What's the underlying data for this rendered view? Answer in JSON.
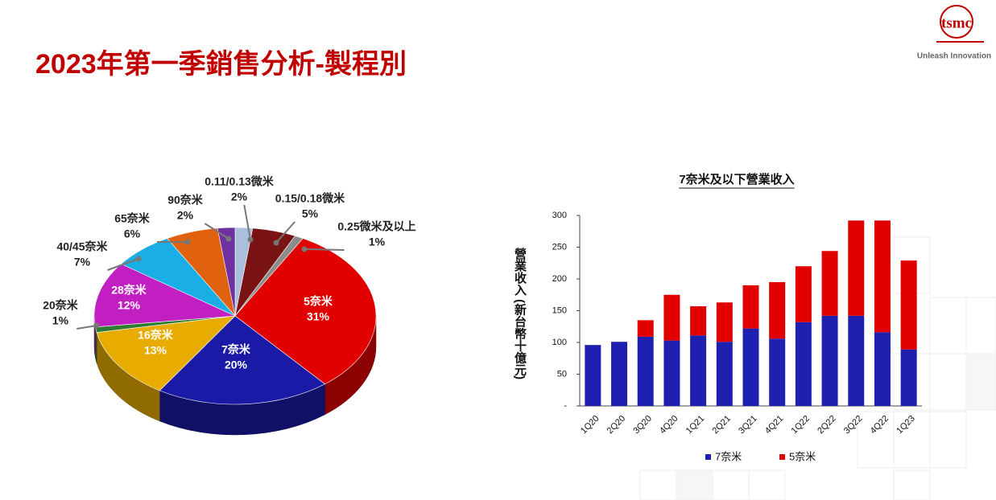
{
  "title": "2023年第一季銷售分析-製程別",
  "logo": {
    "mark": "tsmc",
    "tagline": "Unleash Innovation"
  },
  "chart_data": [
    {
      "type": "pie",
      "categories": [
        "0.11/0.13微米",
        "0.15/0.18微米",
        "0.25微米及以上",
        "5奈米",
        "7奈米",
        "16奈米",
        "20奈米",
        "28奈米",
        "40/45奈米",
        "65奈米",
        "90奈米"
      ],
      "values": [
        2,
        5,
        1,
        31,
        20,
        13,
        1,
        12,
        7,
        6,
        2
      ],
      "value_labels": [
        "2%",
        "5%",
        "1%",
        "31%",
        "20%",
        "13%",
        "1%",
        "12%",
        "7%",
        "6%",
        "2%"
      ],
      "colors": [
        "#a9bfdc",
        "#7a1414",
        "#8c8c8c",
        "#e00000",
        "#1a1aa6",
        "#e8ac00",
        "#2e7d32",
        "#c21fc2",
        "#19aee6",
        "#e0620f",
        "#7030a0"
      ]
    },
    {
      "type": "bar",
      "stacked": true,
      "title": "7奈米及以下營業收入",
      "ylabel": "營業收入 (新台幣十億元)",
      "categories": [
        "1Q20",
        "2Q20",
        "3Q20",
        "4Q20",
        "1Q21",
        "2Q21",
        "3Q21",
        "4Q21",
        "1Q22",
        "2Q22",
        "3Q22",
        "4Q22",
        "1Q23"
      ],
      "series": [
        {
          "name": "7奈米",
          "color": "#2020b0",
          "values": [
            96,
            101,
            109,
            103,
            111,
            101,
            122,
            106,
            132,
            142,
            142,
            116,
            89
          ]
        },
        {
          "name": "5奈米",
          "color": "#e00000",
          "values": [
            null,
            null,
            26,
            72,
            46,
            62,
            68,
            89,
            88,
            102,
            150,
            176,
            140
          ]
        }
      ],
      "ylim": [
        0,
        300
      ],
      "yticks": [
        {
          "value": 0,
          "label": "-"
        },
        50,
        100,
        150,
        200,
        250,
        300
      ],
      "legend": "bottom"
    }
  ]
}
